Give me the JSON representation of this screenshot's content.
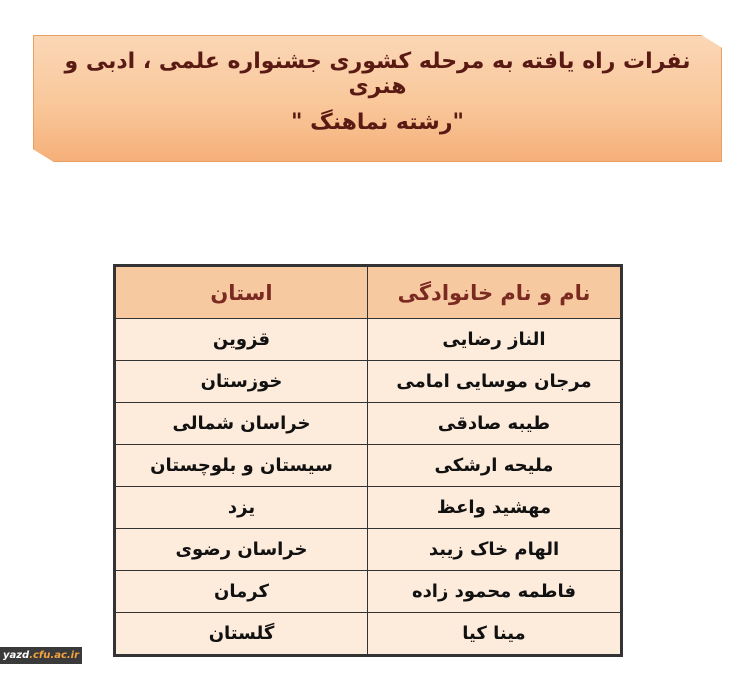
{
  "title": {
    "line1": "نفرات راه یافته به مرحله کشوری جشنواره علمی ، ادبی و هنری",
    "line2": "\"رشته نماهنگ \""
  },
  "table": {
    "headers": [
      "نام و نام خانوادگی",
      "استان"
    ],
    "rows": [
      {
        "name": "الناز رضایی",
        "province": "قزوین"
      },
      {
        "name": "مرجان  موسایی امامی",
        "province": "خوزستان"
      },
      {
        "name": "طیبه صادقی",
        "province": "خراسان شمالی"
      },
      {
        "name": "ملیحه ارشکی",
        "province": "سیستان و بلوچستان"
      },
      {
        "name": "مهشید واعظ",
        "province": "یزد"
      },
      {
        "name": "الهام خاک زیبد",
        "province": "خراسان رضوی"
      },
      {
        "name": "فاطمه محمود زاده",
        "province": "کرمان"
      },
      {
        "name": "مینا کیا",
        "province": "گلستان"
      }
    ]
  },
  "watermark": {
    "part1": "yazd",
    "part2": ".cfu.ac.ir"
  },
  "colors": {
    "banner": "#f9c79a",
    "header_bg": "#f7c9a1",
    "row_bg": "#fdebdc",
    "header_text": "#7a2a20"
  }
}
